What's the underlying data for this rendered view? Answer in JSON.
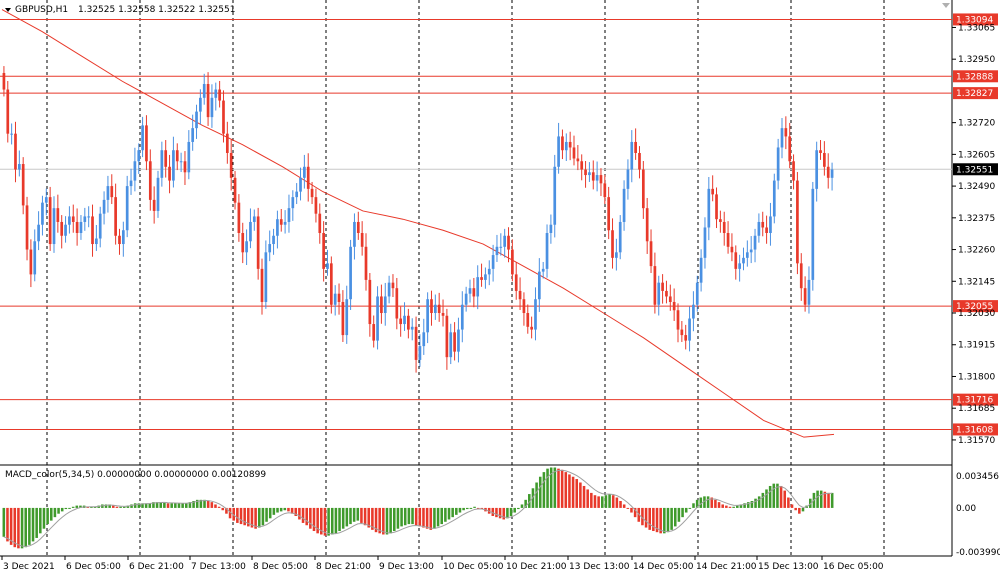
{
  "header": {
    "symbol": "GBPUSD,H1",
    "ohlc": "1.32525 1.32558 1.32522 1.32551"
  },
  "colors": {
    "bull": "#4a90e2",
    "bear": "#e8392a",
    "ma": "#e8392a",
    "level": "#e8392a",
    "grid": "#000000",
    "current": "#c8c8c8",
    "macd_up": "#3f9a2c",
    "macd_down": "#e8392a",
    "signal": "#a0a0a0"
  },
  "chart_data": [
    {
      "type": "candlestick",
      "title": "GBPUSD,H1",
      "ylim": [
        1.3149,
        1.3315
      ],
      "y_ticks": [
        "1.33065",
        "1.32950",
        "1.32720",
        "1.32605",
        "1.32490",
        "1.32375",
        "1.32260",
        "1.32145",
        "1.32030",
        "1.31915",
        "1.31800",
        "1.31685",
        "1.31570"
      ],
      "x_ticks": [
        "3 Dec 2021",
        "6 Dec 05:00",
        "6 Dec 21:00",
        "7 Dec 13:00",
        "8 Dec 05:00",
        "8 Dec 21:00",
        "9 Dec 13:00",
        "10 Dec 05:00",
        "10 Dec 21:00",
        "13 Dec 13:00",
        "14 Dec 05:00",
        "14 Dec 21:00",
        "15 Dec 13:00",
        "16 Dec 05:00"
      ],
      "levels": [
        {
          "label": "1.33094",
          "value": 1.33094
        },
        {
          "label": "1.32888",
          "value": 1.32888
        },
        {
          "label": "1.32827",
          "value": 1.32827
        },
        {
          "label": "1.32055",
          "value": 1.32055
        },
        {
          "label": "1.31716",
          "value": 1.31716
        },
        {
          "label": "1.31608",
          "value": 1.31608
        }
      ],
      "current_price": {
        "label": "1.32551",
        "value": 1.32551
      },
      "close": [
        1.3284,
        1.3268,
        1.3268,
        1.3255,
        1.3257,
        1.3242,
        1.3226,
        1.3217,
        1.3229,
        1.3235,
        1.3243,
        1.3245,
        1.3228,
        1.3241,
        1.3236,
        1.3231,
        1.3235,
        1.3238,
        1.3236,
        1.3232,
        1.3236,
        1.3238,
        1.3238,
        1.3228,
        1.323,
        1.3239,
        1.3244,
        1.3249,
        1.3245,
        1.3231,
        1.3228,
        1.3233,
        1.3249,
        1.3251,
        1.3258,
        1.3262,
        1.3271,
        1.3258,
        1.3244,
        1.324,
        1.3252,
        1.3262,
        1.3256,
        1.3251,
        1.3262,
        1.3258,
        1.3258,
        1.3254,
        1.3265,
        1.327,
        1.3276,
        1.3281,
        1.3286,
        1.3274,
        1.3281,
        1.3284,
        1.328,
        1.3268,
        1.3261,
        1.3252,
        1.3243,
        1.3232,
        1.3225,
        1.3229,
        1.3236,
        1.3238,
        1.3219,
        1.3207,
        1.3225,
        1.3228,
        1.3231,
        1.3237,
        1.3235,
        1.3236,
        1.3241,
        1.3245,
        1.3247,
        1.3252,
        1.3256,
        1.3248,
        1.3245,
        1.3239,
        1.3232,
        1.3219,
        1.3221,
        1.3206,
        1.321,
        1.3207,
        1.3195,
        1.3208,
        1.3227,
        1.3236,
        1.3232,
        1.3227,
        1.3215,
        1.3199,
        1.3193,
        1.3209,
        1.3203,
        1.3209,
        1.3214,
        1.3212,
        1.3201,
        1.3199,
        1.3202,
        1.3197,
        1.3198,
        1.3186,
        1.3191,
        1.3196,
        1.3208,
        1.3203,
        1.3206,
        1.3203,
        1.3202,
        1.3187,
        1.3196,
        1.3189,
        1.3197,
        1.3206,
        1.321,
        1.3212,
        1.3209,
        1.3216,
        1.3215,
        1.3217,
        1.3219,
        1.3224,
        1.3227,
        1.3227,
        1.3231,
        1.3226,
        1.3217,
        1.3211,
        1.3208,
        1.3203,
        1.3198,
        1.3197,
        1.3208,
        1.3218,
        1.3219,
        1.3232,
        1.3235,
        1.3256,
        1.3267,
        1.3262,
        1.3265,
        1.3263,
        1.3259,
        1.3258,
        1.3255,
        1.3253,
        1.3254,
        1.3251,
        1.3253,
        1.325,
        1.3245,
        1.3233,
        1.3223,
        1.3225,
        1.3236,
        1.3248,
        1.3255,
        1.3265,
        1.3261,
        1.3255,
        1.3241,
        1.3229,
        1.322,
        1.3206,
        1.3214,
        1.3211,
        1.3209,
        1.3207,
        1.3204,
        1.3197,
        1.3195,
        1.3193,
        1.3201,
        1.3206,
        1.3214,
        1.3223,
        1.3234,
        1.3248,
        1.3246,
        1.3237,
        1.3236,
        1.3232,
        1.3227,
        1.3225,
        1.3219,
        1.3221,
        1.3223,
        1.3225,
        1.3226,
        1.3231,
        1.3236,
        1.3234,
        1.3232,
        1.3238,
        1.3251,
        1.3263,
        1.327,
        1.3267,
        1.3258,
        1.3251,
        1.3221,
        1.3212,
        1.3206,
        1.3215,
        1.3248,
        1.3262,
        1.3261,
        1.3256,
        1.3252,
        1.3255
      ],
      "moving_average": [
        [
          0,
          1.3313
        ],
        [
          40,
          1.3305
        ],
        [
          80,
          1.3296
        ],
        [
          120,
          1.3287
        ],
        [
          160,
          1.3279
        ],
        [
          200,
          1.3271
        ],
        [
          240,
          1.3264
        ],
        [
          280,
          1.3256
        ],
        [
          320,
          1.3247
        ],
        [
          360,
          1.324
        ],
        [
          400,
          1.3237
        ],
        [
          440,
          1.3233
        ],
        [
          480,
          1.3228
        ],
        [
          520,
          1.322
        ],
        [
          560,
          1.3212
        ],
        [
          600,
          1.3203
        ],
        [
          640,
          1.3194
        ],
        [
          680,
          1.3184
        ],
        [
          720,
          1.3174
        ],
        [
          760,
          1.3164
        ],
        [
          800,
          1.3158
        ],
        [
          830,
          1.3159
        ]
      ]
    },
    {
      "type": "bar",
      "title": "MACD_color(5,34,5) 0.00000000 0.00000000 0.00120899",
      "ylim": [
        -0.00399,
        0.003456
      ],
      "y_ticks": [
        "0.003456",
        "0.00",
        "-0.003990"
      ],
      "values": [
        -0.0025,
        -0.0029,
        -0.0032,
        -0.0034,
        -0.0035,
        -0.0035,
        -0.0034,
        -0.0032,
        -0.0029,
        -0.0026,
        -0.0022,
        -0.0018,
        -0.0014,
        -0.0011,
        -0.0008,
        -0.0005,
        -0.0003,
        -0.0001,
        0.0,
        0.0001,
        0.0002,
        0.0002,
        0.0002,
        0.0001,
        0.0001,
        0.0001,
        0.0002,
        0.0003,
        0.0003,
        0.0003,
        0.0002,
        0.0001,
        0.0001,
        0.0001,
        0.0002,
        0.0003,
        0.0004,
        0.0004,
        0.0004,
        0.0004,
        0.0004,
        0.0005,
        0.0005,
        0.0005,
        0.0005,
        0.0004,
        0.0004,
        0.0004,
        0.0004,
        0.0004,
        0.0004,
        0.0005,
        0.0006,
        0.0007,
        0.0007,
        0.0007,
        0.0006,
        0.0005,
        0.0003,
        0.0001,
        -0.0002,
        -0.0005,
        -0.0009,
        -0.0011,
        -0.0013,
        -0.0014,
        -0.0015,
        -0.0016,
        -0.0017,
        -0.0018,
        -0.0017,
        -0.0015,
        -0.0012,
        -0.0009,
        -0.0006,
        -0.0004,
        -0.0003,
        -0.0002,
        -0.0003,
        -0.0005,
        -0.0007,
        -0.001,
        -0.0013,
        -0.0015,
        -0.0018,
        -0.002,
        -0.0022,
        -0.0023,
        -0.0024,
        -0.0024,
        -0.0023,
        -0.0022,
        -0.002,
        -0.0018,
        -0.0016,
        -0.0014,
        -0.0012,
        -0.0011,
        -0.0013,
        -0.0015,
        -0.0017,
        -0.0019,
        -0.0021,
        -0.0022,
        -0.0023,
        -0.0023,
        -0.0022,
        -0.002,
        -0.0018,
        -0.0016,
        -0.0015,
        -0.0014,
        -0.0014,
        -0.0015,
        -0.0016,
        -0.0017,
        -0.0018,
        -0.0019,
        -0.0018,
        -0.0016,
        -0.0014,
        -0.0012,
        -0.001,
        -0.0008,
        -0.0006,
        -0.0004,
        -0.0002,
        -0.0001,
        0.0,
        0.0001,
        0.0,
        -0.0001,
        -0.0003,
        -0.0005,
        -0.0007,
        -0.0008,
        -0.0009,
        -0.001,
        -0.0009,
        -0.0007,
        -0.0004,
        -0.0001,
        0.0003,
        0.0007,
        0.0012,
        0.0017,
        0.0022,
        0.0027,
        0.0031,
        0.0034,
        0.0035,
        0.0035,
        0.0034,
        0.0033,
        0.0031,
        0.0029,
        0.0027,
        0.0025,
        0.0022,
        0.0019,
        0.0016,
        0.0013,
        0.0011,
        0.001,
        0.001,
        0.0011,
        0.0012,
        0.0011,
        0.0009,
        0.0006,
        0.0003,
        0.0,
        -0.0004,
        -0.0008,
        -0.0012,
        -0.0015,
        -0.0017,
        -0.0019,
        -0.002,
        -0.0021,
        -0.0022,
        -0.0022,
        -0.0021,
        -0.0019,
        -0.0016,
        -0.0012,
        -0.0008,
        -0.0004,
        0.0,
        0.0004,
        0.0007,
        0.0009,
        0.001,
        0.001,
        0.0009,
        0.0007,
        0.0005,
        0.0003,
        0.0002,
        0.0001,
        0.0001,
        0.0002,
        0.0003,
        0.0004,
        0.0005,
        0.0006,
        0.0008,
        0.001,
        0.0013,
        0.0016,
        0.0019,
        0.0021,
        0.0021,
        0.0019,
        0.0015,
        0.0009,
        0.0003,
        -0.0002,
        -0.0005,
        -0.0003,
        0.0002,
        0.0008,
        0.0013,
        0.0015,
        0.0015,
        0.0014,
        0.0013,
        0.0013
      ]
    }
  ]
}
